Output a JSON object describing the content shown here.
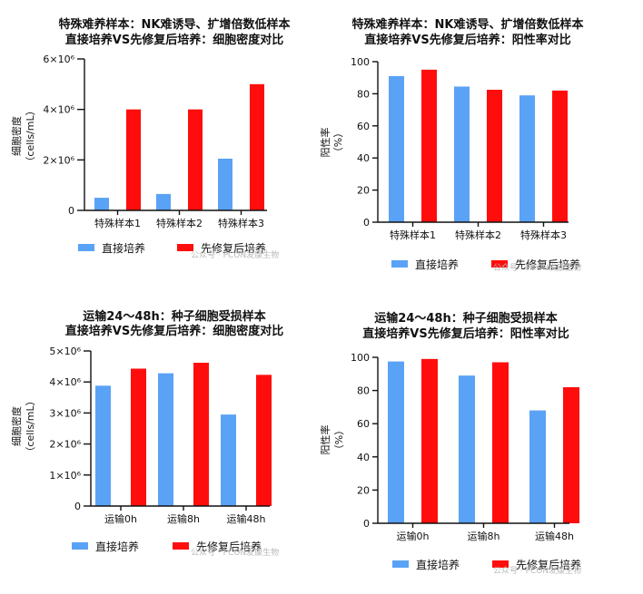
{
  "colors": {
    "direct": "#5aa2f6",
    "restored": "#ff0d0d"
  },
  "watermark": "公众号 · PCON发康生物",
  "chart_data": [
    {
      "type": "bar",
      "title_lines": [
        "特殊难养样本：NK难诱导、扩增倍数低样本",
        "直接培养VS先修复后培养：细胞密度对比"
      ],
      "ylabel": "细胞密度",
      "yunit": "（cells/mL）",
      "categories": [
        "特殊样本1",
        "特殊样本2",
        "特殊样本3"
      ],
      "series": [
        {
          "name": "直接培养",
          "values": [
            500000,
            650000,
            2050000
          ]
        },
        {
          "name": "先修复后培养",
          "values": [
            4000000,
            4000000,
            5000000
          ]
        }
      ],
      "ylim": [
        0,
        6000000
      ],
      "yticks": [
        0,
        2000000,
        4000000,
        6000000
      ],
      "ytick_labels": [
        "0",
        "2×10⁶",
        "4×10⁶",
        "6×10⁶"
      ]
    },
    {
      "type": "bar",
      "title_lines": [
        "特殊难养样本：NK难诱导、扩增倍数低样本",
        "直接培养VS先修复后培养：阳性率对比"
      ],
      "ylabel": "阳性率",
      "yunit": "（%）",
      "categories": [
        "特殊样本1",
        "特殊样本2",
        "特殊样本3"
      ],
      "series": [
        {
          "name": "直接培养",
          "values": [
            91,
            84.5,
            79
          ]
        },
        {
          "name": "先修复后培养",
          "values": [
            95,
            82.5,
            82
          ]
        }
      ],
      "ylim": [
        0,
        100
      ],
      "yticks": [
        0,
        20,
        40,
        60,
        80,
        100
      ],
      "ytick_labels": [
        "0",
        "20",
        "40",
        "60",
        "80",
        "100"
      ]
    },
    {
      "type": "bar",
      "title_lines": [
        "运输24～48h：种子细胞受损样本",
        "直接培养VS先修复后培养：细胞密度对比"
      ],
      "ylabel": "细胞密度",
      "yunit": "（cells/mL）",
      "categories": [
        "运输0h",
        "运输8h",
        "运输48h"
      ],
      "series": [
        {
          "name": "直接培养",
          "values": [
            3880000,
            4280000,
            2950000
          ]
        },
        {
          "name": "先修复后培养",
          "values": [
            4430000,
            4620000,
            4230000
          ]
        }
      ],
      "ylim": [
        0,
        5000000
      ],
      "yticks": [
        0,
        1000000,
        2000000,
        3000000,
        4000000,
        5000000
      ],
      "ytick_labels": [
        "0",
        "1×10⁶",
        "2×10⁶",
        "3×10⁶",
        "4×10⁶",
        "5×10⁶"
      ]
    },
    {
      "type": "bar",
      "title_lines": [
        "运输24～48h：种子细胞受损样本",
        "直接培养VS先修复后培养：阳性率对比"
      ],
      "ylabel": "阳性率",
      "yunit": "（%）",
      "categories": [
        "运输0h",
        "运输8h",
        "运输48h"
      ],
      "series": [
        {
          "name": "直接培养",
          "values": [
            97.5,
            89,
            68
          ]
        },
        {
          "name": "先修复后培养",
          "values": [
            99,
            97,
            82
          ]
        }
      ],
      "ylim": [
        0,
        100
      ],
      "yticks": [
        0,
        20,
        40,
        60,
        80,
        100
      ],
      "ytick_labels": [
        "0",
        "20",
        "40",
        "60",
        "80",
        "100"
      ]
    }
  ]
}
